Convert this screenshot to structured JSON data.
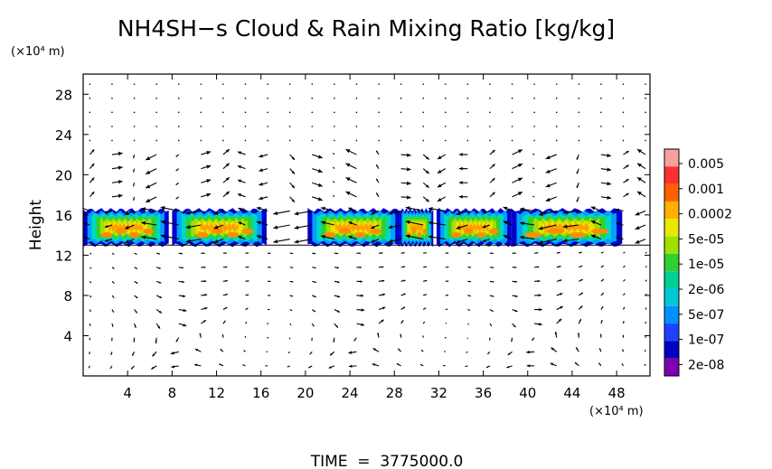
{
  "chart_data": {
    "type": "heatmap",
    "title": "NH4SH−s Cloud & Rain Mixing Ratio [kg/kg]",
    "ylabel": "Height",
    "y_unit": "(×10⁴ m)",
    "x_unit": "(×10⁴ m)",
    "xlim": [
      0,
      51
    ],
    "ylim": [
      0,
      30
    ],
    "x_ticks": [
      4,
      8,
      12,
      16,
      20,
      24,
      28,
      32,
      36,
      40,
      44,
      48
    ],
    "x_tick_labels": [
      "4",
      "8",
      "12",
      "16",
      "20",
      "24",
      "28",
      "32",
      "36",
      "40",
      "44",
      "48"
    ],
    "y_ticks": [
      4,
      8,
      12,
      16,
      20,
      24,
      28
    ],
    "y_tick_labels": [
      "4",
      "8",
      "12",
      "16",
      "20",
      "24",
      "28"
    ],
    "footer": "TIME  =  3775000.0",
    "colorbar": {
      "labels": [
        "0.005",
        "0.001",
        "0.0002",
        "5e-05",
        "1e-05",
        "2e-06",
        "5e-07",
        "1e-07",
        "2e-08"
      ],
      "colors": [
        "#f7a0a0",
        "#ff3030",
        "#ff6000",
        "#ffb000",
        "#e8e800",
        "#a0e000",
        "#30d030",
        "#00d090",
        "#00c8d8",
        "#0090ff",
        "#2040ff",
        "#0000c0",
        "#8000b0"
      ]
    },
    "cloud_layer": {
      "height_range": [
        13,
        16.5
      ]
    },
    "cloud_patches": [
      {
        "x_range": [
          0,
          7.7
        ],
        "core": [
          1.5,
          6.5
        ]
      },
      {
        "x_range": [
          8,
          16.5
        ],
        "core": [
          10,
          15.5
        ]
      },
      {
        "x_range": [
          20.2,
          28.5
        ],
        "core": [
          21.5,
          27
        ]
      },
      {
        "x_range": [
          28.5,
          31.5
        ],
        "core": [
          29,
          31
        ]
      },
      {
        "x_range": [
          31.8,
          38.5
        ],
        "core": [
          33,
          37.5
        ]
      },
      {
        "x_range": [
          38.5,
          48.5
        ],
        "core": [
          39.5,
          47.5
        ]
      }
    ],
    "vector_field": {
      "shown": true,
      "circulation_cells": [
        {
          "x": 9,
          "y": 4,
          "direction": "clockwise"
        },
        {
          "x": 25,
          "y": 4,
          "direction": "clockwise"
        },
        {
          "x": 41,
          "y": 4,
          "direction": "clockwise"
        }
      ],
      "shear_layer_height": 14
    },
    "grid": false
  }
}
